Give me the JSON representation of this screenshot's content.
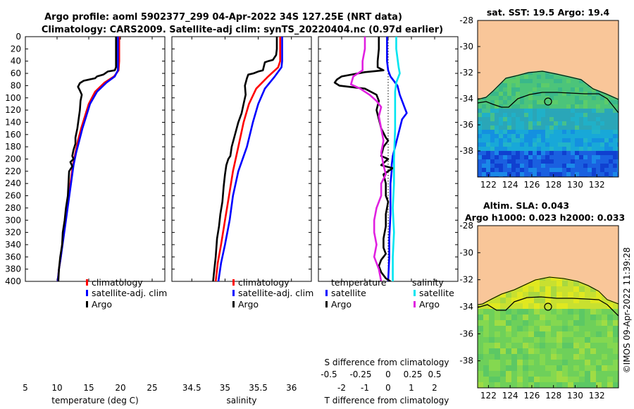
{
  "titles": {
    "line1": "Argo profile: aoml 5902377_299 04-Apr-2022 34S 127.25E (NRT data)",
    "line2": "Climatology: CARS2009. Satellite-adj clim: synTS_20220404.nc (0.97d earlier)"
  },
  "colors": {
    "climatology": "#ff0000",
    "satellite": "#0000ff",
    "argo": "#000000",
    "sat_salinity": "#00e5f0",
    "argo_salinity": "#e020e0",
    "land": "#f9c699"
  },
  "chart_data": [
    {
      "type": "line",
      "id": "temperature",
      "xlabel": "temperature (deg C)",
      "ylabel": "",
      "xlim": [
        5,
        27
      ],
      "ylim": [
        400,
        0
      ],
      "xticks": [
        5,
        10,
        15,
        20,
        25
      ],
      "yticks": [
        0,
        20,
        40,
        60,
        80,
        100,
        120,
        140,
        160,
        180,
        200,
        220,
        240,
        260,
        280,
        300,
        320,
        340,
        360,
        380,
        400
      ],
      "legend": [
        "climatology",
        "satellite-adj. clim",
        "Argo"
      ],
      "series": [
        {
          "name": "climatology",
          "color": "#ff0000",
          "points": [
            [
              19.8,
              0
            ],
            [
              19.8,
              40
            ],
            [
              19.7,
              55
            ],
            [
              19,
              65
            ],
            [
              17.5,
              75
            ],
            [
              16,
              90
            ],
            [
              15,
              110
            ],
            [
              14.4,
              130
            ],
            [
              13.8,
              150
            ],
            [
              13.3,
              170
            ],
            [
              12.9,
              190
            ],
            [
              12.5,
              210
            ],
            [
              12.1,
              240
            ],
            [
              11.7,
              270
            ],
            [
              11.3,
              300
            ],
            [
              10.9,
              330
            ],
            [
              10.6,
              360
            ],
            [
              10.3,
              380
            ],
            [
              10.1,
              400
            ]
          ]
        },
        {
          "name": "satellite-adj. clim",
          "color": "#0000ff",
          "points": [
            [
              19.6,
              0
            ],
            [
              19.6,
              40
            ],
            [
              19.6,
              55
            ],
            [
              19.1,
              65
            ],
            [
              17.8,
              75
            ],
            [
              16.3,
              90
            ],
            [
              15.2,
              110
            ],
            [
              14.6,
              130
            ],
            [
              14,
              150
            ],
            [
              13.5,
              170
            ],
            [
              13,
              190
            ],
            [
              12.6,
              210
            ],
            [
              12.2,
              240
            ],
            [
              11.8,
              270
            ],
            [
              11.4,
              300
            ],
            [
              11,
              330
            ],
            [
              10.6,
              360
            ],
            [
              10.3,
              380
            ],
            [
              10.1,
              400
            ]
          ]
        },
        {
          "name": "Argo",
          "color": "#000000",
          "points": [
            [
              19.3,
              0
            ],
            [
              19.3,
              30
            ],
            [
              19.3,
              50
            ],
            [
              19.1,
              55
            ],
            [
              18,
              57
            ],
            [
              17.3,
              62
            ],
            [
              16.3,
              65
            ],
            [
              16,
              68
            ],
            [
              14.2,
              72
            ],
            [
              13.6,
              76
            ],
            [
              13.3,
              82
            ],
            [
              13.6,
              88
            ],
            [
              13.9,
              95
            ],
            [
              13.7,
              105
            ],
            [
              13.6,
              120
            ],
            [
              13.4,
              135
            ],
            [
              13.2,
              150
            ],
            [
              12.9,
              165
            ],
            [
              12.9,
              175
            ],
            [
              12.6,
              185
            ],
            [
              12.4,
              195
            ],
            [
              12.6,
              200
            ],
            [
              12.1,
              205
            ],
            [
              12.4,
              212
            ],
            [
              11.9,
              220
            ],
            [
              11.8,
              240
            ],
            [
              11.7,
              260
            ],
            [
              11.4,
              280
            ],
            [
              11.2,
              300
            ],
            [
              10.9,
              320
            ],
            [
              10.8,
              340
            ],
            [
              10.5,
              360
            ],
            [
              10.3,
              380
            ],
            [
              10.2,
              400
            ]
          ]
        }
      ]
    },
    {
      "type": "line",
      "id": "salinity",
      "xlabel": "salinity",
      "ylabel": "",
      "xlim": [
        34.2,
        36.3
      ],
      "ylim": [
        400,
        0
      ],
      "xticks": [
        34.5,
        35,
        35.5,
        36
      ],
      "legend": [
        "climatology",
        "satellite-adj. clim",
        "Argo"
      ],
      "series": [
        {
          "name": "climatology",
          "color": "#ff0000",
          "points": [
            [
              35.83,
              0
            ],
            [
              35.83,
              40
            ],
            [
              35.8,
              50
            ],
            [
              35.65,
              65
            ],
            [
              35.47,
              85
            ],
            [
              35.36,
              110
            ],
            [
              35.28,
              140
            ],
            [
              35.2,
              180
            ],
            [
              35.12,
              220
            ],
            [
              35.06,
              260
            ],
            [
              35,
              300
            ],
            [
              34.94,
              340
            ],
            [
              34.89,
              370
            ],
            [
              34.86,
              400
            ]
          ]
        },
        {
          "name": "satellite-adj. clim",
          "color": "#0000ff",
          "points": [
            [
              35.86,
              0
            ],
            [
              35.86,
              40
            ],
            [
              35.85,
              50
            ],
            [
              35.75,
              65
            ],
            [
              35.6,
              85
            ],
            [
              35.5,
              110
            ],
            [
              35.42,
              140
            ],
            [
              35.33,
              180
            ],
            [
              35.2,
              220
            ],
            [
              35.12,
              260
            ],
            [
              35.07,
              300
            ],
            [
              35,
              340
            ],
            [
              34.94,
              370
            ],
            [
              34.9,
              400
            ]
          ]
        },
        {
          "name": "Argo",
          "color": "#000000",
          "points": [
            [
              35.78,
              0
            ],
            [
              35.78,
              20
            ],
            [
              35.77,
              30
            ],
            [
              35.72,
              38
            ],
            [
              35.65,
              40
            ],
            [
              35.6,
              42
            ],
            [
              35.57,
              55
            ],
            [
              35.5,
              57
            ],
            [
              35.43,
              60
            ],
            [
              35.35,
              62
            ],
            [
              35.33,
              68
            ],
            [
              35.3,
              80
            ],
            [
              35.31,
              95
            ],
            [
              35.28,
              110
            ],
            [
              35.25,
              125
            ],
            [
              35.2,
              140
            ],
            [
              35.15,
              160
            ],
            [
              35.1,
              180
            ],
            [
              35.08,
              195
            ],
            [
              35.05,
              200
            ],
            [
              35.02,
              210
            ],
            [
              35.0,
              225
            ],
            [
              34.98,
              245
            ],
            [
              34.96,
              270
            ],
            [
              34.93,
              290
            ],
            [
              34.91,
              310
            ],
            [
              34.88,
              330
            ],
            [
              34.86,
              360
            ],
            [
              34.84,
              380
            ],
            [
              34.82,
              400
            ]
          ]
        }
      ]
    },
    {
      "type": "line",
      "id": "differences",
      "xlabel": "T difference from climatology",
      "ylabel": "",
      "xlim": [
        -3,
        3
      ],
      "ylim": [
        400,
        0
      ],
      "xticks": [
        -2,
        -1,
        0,
        1,
        2
      ],
      "top_axis_label": "S difference from climatology",
      "top_ticks": [
        "-0.5",
        "-0.25",
        "0",
        "0.25",
        "0.5"
      ],
      "legend_groups": {
        "temperature": [
          "satellite",
          "Argo"
        ],
        "salinity": [
          "satellite",
          "Argo"
        ]
      },
      "series": [
        {
          "name": "T satellite",
          "color": "#0000ff",
          "points": [
            [
              -0.05,
              0
            ],
            [
              -0.05,
              40
            ],
            [
              0,
              55
            ],
            [
              0.1,
              65
            ],
            [
              0.4,
              80
            ],
            [
              0.5,
              95
            ],
            [
              0.6,
              105
            ],
            [
              0.7,
              115
            ],
            [
              0.8,
              125
            ],
            [
              0.6,
              135
            ],
            [
              0.5,
              150
            ],
            [
              0.4,
              165
            ],
            [
              0.3,
              180
            ],
            [
              0.2,
              195
            ],
            [
              0.15,
              210
            ],
            [
              0.15,
              220
            ],
            [
              0.1,
              240
            ],
            [
              0.1,
              260
            ],
            [
              0.1,
              290
            ],
            [
              0.05,
              330
            ],
            [
              0.05,
              360
            ],
            [
              0,
              400
            ]
          ]
        },
        {
          "name": "T Argo",
          "color": "#000000",
          "points": [
            [
              -0.4,
              0
            ],
            [
              -0.4,
              20
            ],
            [
              -0.45,
              40
            ],
            [
              -0.45,
              50
            ],
            [
              -0.2,
              55
            ],
            [
              -1.0,
              58
            ],
            [
              -2.0,
              65
            ],
            [
              -2.2,
              70
            ],
            [
              -2.3,
              75
            ],
            [
              -2.1,
              80
            ],
            [
              -1.0,
              85
            ],
            [
              -0.5,
              95
            ],
            [
              -0.4,
              105
            ],
            [
              -0.5,
              120
            ],
            [
              -0.4,
              135
            ],
            [
              -0.3,
              150
            ],
            [
              -0.1,
              165
            ],
            [
              0,
              170
            ],
            [
              -0.2,
              180
            ],
            [
              -0.3,
              195
            ],
            [
              0,
              200
            ],
            [
              -0.3,
              210
            ],
            [
              0.2,
              215
            ],
            [
              -0.2,
              225
            ],
            [
              -0.1,
              240
            ],
            [
              -0.1,
              260
            ],
            [
              0,
              270
            ],
            [
              -0.1,
              290
            ],
            [
              -0.1,
              310
            ],
            [
              -0.2,
              330
            ],
            [
              -0.2,
              345
            ],
            [
              -0.1,
              355
            ],
            [
              -0.3,
              365
            ],
            [
              -0.4,
              375
            ],
            [
              -0.3,
              385
            ],
            [
              -0.1,
              395
            ],
            [
              0.1,
              400
            ]
          ]
        },
        {
          "name": "S satellite",
          "color": "#00e5f0",
          "points": [
            [
              0.35,
              0
            ],
            [
              0.35,
              20
            ],
            [
              0.45,
              50
            ],
            [
              0.5,
              60
            ],
            [
              0.35,
              75
            ],
            [
              0.3,
              90
            ],
            [
              0.3,
              120
            ],
            [
              0.3,
              150
            ],
            [
              0.25,
              200
            ],
            [
              0.25,
              240
            ],
            [
              0.2,
              280
            ],
            [
              0.25,
              320
            ],
            [
              0.2,
              360
            ],
            [
              0.2,
              400
            ]
          ]
        },
        {
          "name": "S Argo",
          "color": "#e020e0",
          "points": [
            [
              -1.0,
              0
            ],
            [
              -1.0,
              20
            ],
            [
              -1.1,
              40
            ],
            [
              -1.1,
              55
            ],
            [
              -1.5,
              65
            ],
            [
              -1.6,
              78
            ],
            [
              -1.2,
              85
            ],
            [
              -0.8,
              95
            ],
            [
              -0.5,
              105
            ],
            [
              -0.3,
              115
            ],
            [
              -0.4,
              130
            ],
            [
              -0.3,
              150
            ],
            [
              -0.2,
              170
            ],
            [
              -0.3,
              190
            ],
            [
              -0.2,
              210
            ],
            [
              -0.1,
              225
            ],
            [
              -0.3,
              240
            ],
            [
              -0.3,
              260
            ],
            [
              -0.5,
              280
            ],
            [
              -0.6,
              300
            ],
            [
              -0.6,
              320
            ],
            [
              -0.5,
              340
            ],
            [
              -0.6,
              360
            ],
            [
              -0.4,
              380
            ],
            [
              -0.3,
              400
            ]
          ]
        }
      ]
    },
    {
      "type": "heatmap",
      "id": "sst_map",
      "title": "sat. SST: 19.5 Argo: 19.4",
      "xticks": [
        122,
        124,
        126,
        128,
        130,
        132
      ],
      "yticks": [
        -28,
        -30,
        -32,
        -34,
        -36,
        -38
      ],
      "xlim": [
        121,
        134
      ],
      "ylim": [
        -40,
        -28
      ],
      "marker": [
        127.25,
        -34
      ]
    },
    {
      "type": "heatmap",
      "id": "sla_map",
      "title": "Altim. SLA: 0.043",
      "subtitle": "Argo h1000: 0.023 h2000: 0.033",
      "xticks": [
        122,
        124,
        126,
        128,
        130,
        132
      ],
      "yticks": [
        -28,
        -30,
        -32,
        -34,
        -36,
        -38
      ],
      "xlim": [
        121,
        134
      ],
      "ylim": [
        -40,
        -28
      ],
      "marker": [
        127.25,
        -34
      ]
    }
  ],
  "legend_headers": {
    "temperature": "temperature",
    "salinity": "salinity"
  },
  "watermark": "©IMOS 09-Apr-2022 11:39:28"
}
